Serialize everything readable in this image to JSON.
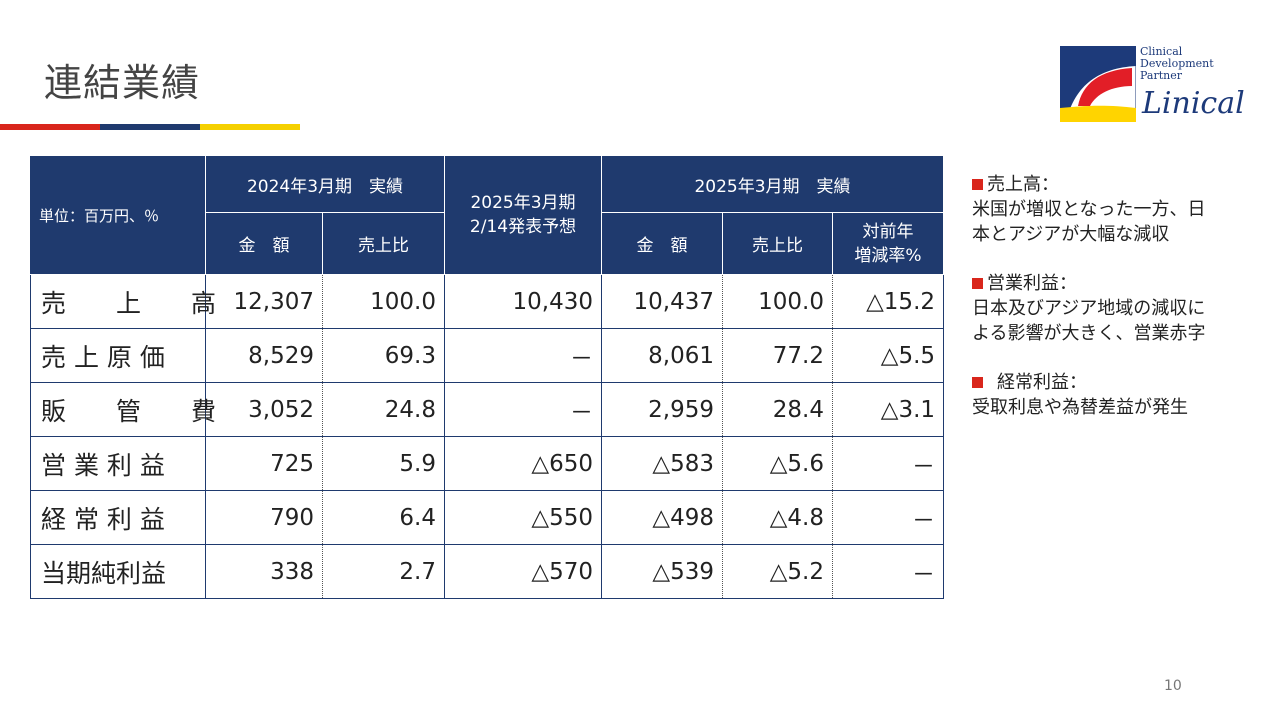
{
  "title": "連結業績",
  "accent_colors": [
    "#d9261c",
    "#1f3a6e",
    "#f5d000"
  ],
  "logo": {
    "sub_lines": [
      "Clinical",
      "Development",
      "Partner"
    ],
    "name": "Linical",
    "colors": {
      "blue": "#1d3a7a",
      "red": "#e21e27",
      "yellow": "#ffd400"
    }
  },
  "table": {
    "unit_label": "単位：百万円、％",
    "group_2024": "2024年3月期　実績",
    "forecast_line1": "2025年3月期",
    "forecast_line2": "2/14発表予想",
    "group_2025": "2025年3月期　実績",
    "amount": "金　額",
    "ratio": "売上比",
    "yoy_line1": "対前年",
    "yoy_line2": "増減率%",
    "rows": [
      {
        "label": "売　　上　　高",
        "a24": "12,307",
        "r24": "100.0",
        "fc": "10,430",
        "a25": "10,437",
        "r25": "100.0",
        "yoy": "△15.2"
      },
      {
        "label": "売 上 原 価",
        "a24": "8,529",
        "r24": "69.3",
        "fc": "－",
        "a25": "8,061",
        "r25": "77.2",
        "yoy": "△5.5"
      },
      {
        "label": "販　　管　　費",
        "a24": "3,052",
        "r24": "24.8",
        "fc": "－",
        "a25": "2,959",
        "r25": "28.4",
        "yoy": "△3.1"
      },
      {
        "label": "営 業 利 益",
        "a24": "725",
        "r24": "5.9",
        "fc": "△650",
        "a25": "△583",
        "r25": "△5.6",
        "yoy": "－"
      },
      {
        "label": "経 常 利 益",
        "a24": "790",
        "r24": "6.4",
        "fc": "△550",
        "a25": "△498",
        "r25": "△4.8",
        "yoy": "－"
      },
      {
        "label": "当期純利益",
        "a24": "338",
        "r24": "2.7",
        "fc": "△570",
        "a25": "△539",
        "r25": "△5.2",
        "yoy": "－"
      }
    ]
  },
  "notes": [
    {
      "head": "売上高：",
      "lines": [
        "米国が増収となった一方、日",
        "本とアジアが大幅な減収"
      ]
    },
    {
      "head": "営業利益：",
      "lines": [
        "日本及びアジア地域の減収に",
        "よる影響が大きく、営業赤字"
      ]
    },
    {
      "head": "経常利益：",
      "lines": [
        "受取利息や為替差益が発生"
      ]
    }
  ],
  "page_number": "10"
}
